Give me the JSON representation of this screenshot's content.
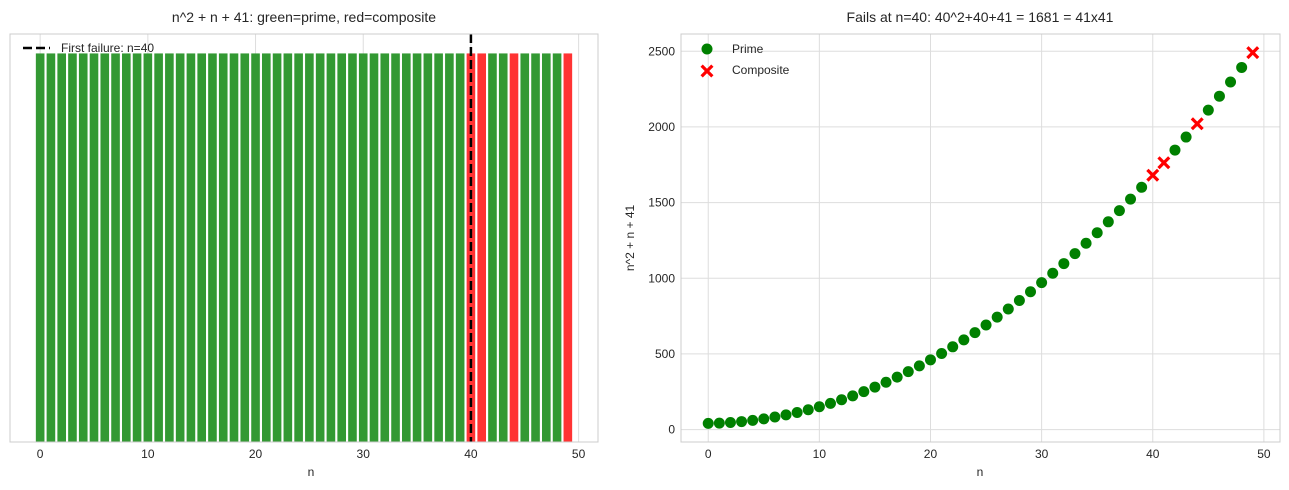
{
  "chart_data": [
    {
      "type": "bar",
      "title": "n^2 + n + 41: green=prime, red=composite",
      "xlabel": "n",
      "ylabel": "",
      "x": [
        0,
        1,
        2,
        3,
        4,
        5,
        6,
        7,
        8,
        9,
        10,
        11,
        12,
        13,
        14,
        15,
        16,
        17,
        18,
        19,
        20,
        21,
        22,
        23,
        24,
        25,
        26,
        27,
        28,
        29,
        30,
        31,
        32,
        33,
        34,
        35,
        36,
        37,
        38,
        39,
        40,
        41,
        42,
        43,
        44,
        45,
        46,
        47,
        48,
        49
      ],
      "values": [
        1,
        1,
        1,
        1,
        1,
        1,
        1,
        1,
        1,
        1,
        1,
        1,
        1,
        1,
        1,
        1,
        1,
        1,
        1,
        1,
        1,
        1,
        1,
        1,
        1,
        1,
        1,
        1,
        1,
        1,
        1,
        1,
        1,
        1,
        1,
        1,
        1,
        1,
        1,
        1,
        1,
        1,
        1,
        1,
        1,
        1,
        1,
        1,
        1,
        1
      ],
      "composite_n": [
        40,
        41,
        44,
        49
      ],
      "colors": {
        "prime": "#339933",
        "composite": "#ff3333",
        "vline": "#000000"
      },
      "xticks": [
        0,
        10,
        20,
        30,
        40,
        50
      ],
      "xlim": [
        -2.8,
        51.8
      ],
      "ylim": [
        0,
        1.05
      ],
      "grid": true,
      "annotations": [
        {
          "type": "vline",
          "x": 40,
          "style": "dashed",
          "label": "First failure: n=40"
        }
      ],
      "legend": {
        "position": "upper left",
        "entries": [
          "First failure: n=40"
        ]
      }
    },
    {
      "type": "scatter",
      "title": "Fails at n=40: 40^2+40+41 = 1681 = 41x41",
      "xlabel": "n",
      "ylabel": "n^2 + n + 41",
      "series": [
        {
          "name": "Prime",
          "marker": "circle",
          "color": "#008000",
          "x": [
            0,
            1,
            2,
            3,
            4,
            5,
            6,
            7,
            8,
            9,
            10,
            11,
            12,
            13,
            14,
            15,
            16,
            17,
            18,
            19,
            20,
            21,
            22,
            23,
            24,
            25,
            26,
            27,
            28,
            29,
            30,
            31,
            32,
            33,
            34,
            35,
            36,
            37,
            38,
            39,
            42,
            43,
            45,
            46,
            47,
            48
          ],
          "y": [
            41,
            43,
            47,
            53,
            61,
            71,
            83,
            97,
            113,
            131,
            151,
            173,
            197,
            223,
            251,
            281,
            313,
            347,
            383,
            421,
            461,
            503,
            547,
            593,
            641,
            691,
            743,
            797,
            853,
            911,
            971,
            1033,
            1097,
            1163,
            1231,
            1301,
            1373,
            1447,
            1523,
            1601,
            1847,
            1933,
            2111,
            2203,
            2297,
            2393
          ]
        },
        {
          "name": "Composite",
          "marker": "x",
          "color": "#ff0000",
          "x": [
            40,
            41,
            44,
            49
          ],
          "y": [
            1681,
            1763,
            2021,
            2491
          ]
        }
      ],
      "xticks": [
        0,
        10,
        20,
        30,
        40,
        50
      ],
      "yticks": [
        0,
        500,
        1000,
        1500,
        2000,
        2500
      ],
      "xlim": [
        -2.45,
        51.45
      ],
      "ylim": [
        -82,
        2614
      ],
      "grid": true,
      "legend": {
        "position": "upper left",
        "entries": [
          "Prime",
          "Composite"
        ]
      }
    }
  ]
}
